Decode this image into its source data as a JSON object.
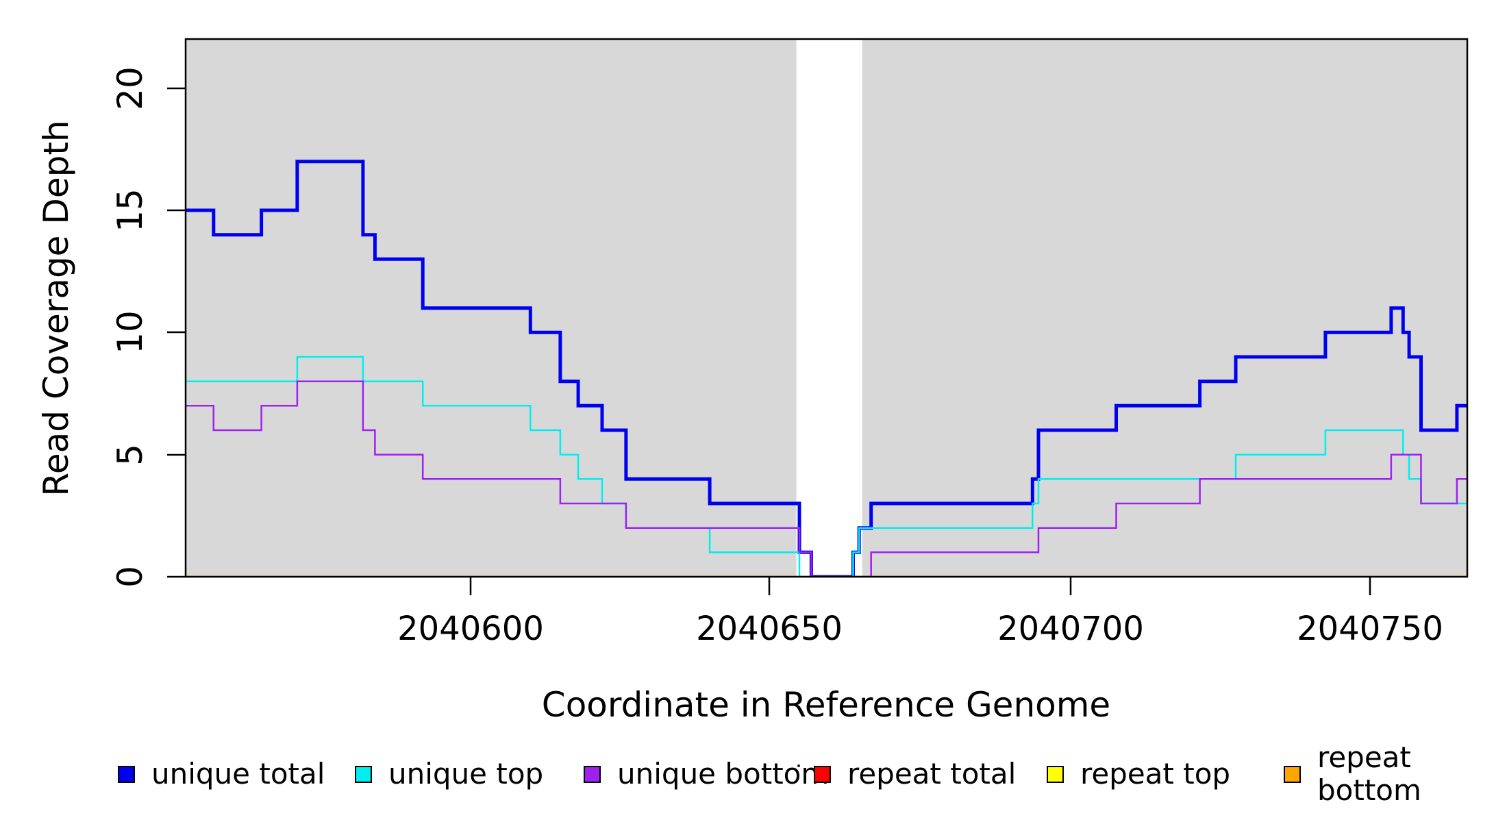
{
  "figure": {
    "xlabel": "Coordinate in Reference Genome",
    "ylabel": "Read Coverage Depth",
    "x_tick_labels": [
      "2040600",
      "2040650",
      "2040700",
      "2040750"
    ],
    "y_tick_labels": [
      "0",
      "5",
      "10",
      "15",
      "20"
    ]
  },
  "legend": {
    "items": [
      {
        "id": "unique-total",
        "label": "unique total",
        "color": "#0000F0"
      },
      {
        "id": "unique-top",
        "label": "unique top",
        "color": "#00EEEE"
      },
      {
        "id": "unique-bottom",
        "label": "unique bottom",
        "color": "#A020F0"
      },
      {
        "id": "repeat-total",
        "label": "repeat total",
        "color": "#FF0000"
      },
      {
        "id": "repeat-top",
        "label": "repeat top",
        "color": "#FFFF00"
      },
      {
        "id": "repeat-bottom",
        "label": "repeat bottom",
        "color": "#FFA500"
      }
    ]
  },
  "chart_data": {
    "type": "line",
    "subtype": "step-after-coverage",
    "title": "",
    "xlabel": "Coordinate in Reference Genome",
    "ylabel": "Read Coverage Depth",
    "x_ticks": [
      2040600,
      2040650,
      2040700,
      2040750
    ],
    "y_ticks": [
      0,
      5,
      10,
      15,
      20
    ],
    "xlim": [
      2040552,
      2040767
    ],
    "ylim": [
      0,
      22
    ],
    "grid": false,
    "legend_position": "bottom",
    "plot_background_color": "#D8D8D8",
    "background_regions": [
      {
        "x0": 2040552,
        "x1": 2040654.5,
        "color": "#D8D8D8"
      },
      {
        "x0": 2040665.5,
        "x1": 2040767,
        "color": "#D8D8D8"
      }
    ],
    "gap_region": {
      "x0": 2040654.5,
      "x1": 2040665.5,
      "color": "#FFFFFF"
    },
    "series": [
      {
        "id": "repeat-total",
        "name": "repeat total",
        "color": "#FF0000",
        "lwd": 2,
        "steps": [
          [
            2040552,
            0
          ]
        ]
      },
      {
        "id": "repeat-top",
        "name": "repeat top",
        "color": "#FFFF00",
        "lwd": 2,
        "steps": [
          [
            2040552,
            0
          ]
        ]
      },
      {
        "id": "repeat-bottom",
        "name": "repeat bottom",
        "color": "#FFA500",
        "lwd": 3,
        "steps": [
          [
            2040552,
            0
          ]
        ]
      },
      {
        "id": "unique-total",
        "name": "unique total",
        "color": "#0000F0",
        "lwd": 5,
        "steps": [
          [
            2040552,
            15
          ],
          [
            2040557,
            14
          ],
          [
            2040565,
            15
          ],
          [
            2040571,
            17
          ],
          [
            2040582,
            14
          ],
          [
            2040584,
            13
          ],
          [
            2040592,
            11
          ],
          [
            2040610,
            10
          ],
          [
            2040615,
            8
          ],
          [
            2040618,
            7
          ],
          [
            2040622,
            6
          ],
          [
            2040626,
            4
          ],
          [
            2040640,
            3
          ],
          [
            2040655,
            1
          ],
          [
            2040657,
            0
          ],
          [
            2040664,
            1
          ],
          [
            2040665,
            2
          ],
          [
            2040667,
            3
          ],
          [
            2040694,
            4
          ],
          [
            2040695,
            6
          ],
          [
            2040708,
            7
          ],
          [
            2040722,
            8
          ],
          [
            2040728,
            9
          ],
          [
            2040743,
            10
          ],
          [
            2040754,
            11
          ],
          [
            2040756,
            10
          ],
          [
            2040757,
            9
          ],
          [
            2040759,
            6
          ],
          [
            2040765,
            7
          ]
        ]
      },
      {
        "id": "unique-top",
        "name": "unique top",
        "color": "#00EEEE",
        "lwd": 2.5,
        "steps": [
          [
            2040552,
            8
          ],
          [
            2040571,
            9
          ],
          [
            2040582,
            8
          ],
          [
            2040592,
            7
          ],
          [
            2040610,
            6
          ],
          [
            2040615,
            5
          ],
          [
            2040618,
            4
          ],
          [
            2040622,
            3
          ],
          [
            2040626,
            2
          ],
          [
            2040640,
            1
          ],
          [
            2040655,
            0
          ],
          [
            2040664,
            1
          ],
          [
            2040665,
            2
          ],
          [
            2040694,
            3
          ],
          [
            2040695,
            4
          ],
          [
            2040728,
            5
          ],
          [
            2040743,
            6
          ],
          [
            2040756,
            5
          ],
          [
            2040757,
            4
          ],
          [
            2040759,
            3
          ]
        ]
      },
      {
        "id": "unique-bottom",
        "name": "unique bottom",
        "color": "#A020F0",
        "lwd": 2.5,
        "steps": [
          [
            2040552,
            7
          ],
          [
            2040557,
            6
          ],
          [
            2040565,
            7
          ],
          [
            2040571,
            8
          ],
          [
            2040582,
            6
          ],
          [
            2040584,
            5
          ],
          [
            2040592,
            4
          ],
          [
            2040615,
            3
          ],
          [
            2040626,
            2
          ],
          [
            2040655,
            1
          ],
          [
            2040657,
            0
          ],
          [
            2040667,
            1
          ],
          [
            2040695,
            2
          ],
          [
            2040708,
            3
          ],
          [
            2040722,
            4
          ],
          [
            2040754,
            5
          ],
          [
            2040759,
            3
          ],
          [
            2040765,
            4
          ]
        ]
      }
    ]
  }
}
